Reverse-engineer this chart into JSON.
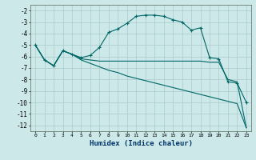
{
  "xlabel": "Humidex (Indice chaleur)",
  "background_color": "#cce8e8",
  "grid_color": "#aacccc",
  "line_color": "#006666",
  "xlim": [
    -0.5,
    23.5
  ],
  "ylim": [
    -12.5,
    -1.5
  ],
  "yticks": [
    -12,
    -11,
    -10,
    -9,
    -8,
    -7,
    -6,
    -5,
    -4,
    -3,
    -2
  ],
  "xticks": [
    0,
    1,
    2,
    3,
    4,
    5,
    6,
    7,
    8,
    9,
    10,
    11,
    12,
    13,
    14,
    15,
    16,
    17,
    18,
    19,
    20,
    21,
    22,
    23
  ],
  "series1_x": [
    0,
    1,
    2,
    3,
    4,
    5,
    6,
    7,
    8,
    9,
    10,
    11,
    12,
    13,
    14,
    15,
    16,
    17,
    18,
    19,
    20,
    21,
    22,
    23
  ],
  "series1_y": [
    -5.0,
    -6.3,
    -6.8,
    -5.5,
    -5.8,
    -6.1,
    -5.9,
    -5.2,
    -3.9,
    -3.6,
    -3.1,
    -2.5,
    -2.4,
    -2.4,
    -2.5,
    -2.8,
    -3.0,
    -3.7,
    -3.5,
    -6.1,
    -6.2,
    -8.2,
    -8.3,
    -10.0
  ],
  "series2_x": [
    0,
    1,
    2,
    3,
    4,
    5,
    6,
    7,
    8,
    9,
    10,
    11,
    12,
    13,
    14,
    15,
    16,
    17,
    18,
    19,
    20,
    21,
    22,
    23
  ],
  "series2_y": [
    -5.0,
    -6.3,
    -6.8,
    -5.5,
    -5.8,
    -6.2,
    -6.3,
    -6.4,
    -6.4,
    -6.4,
    -6.4,
    -6.4,
    -6.4,
    -6.4,
    -6.4,
    -6.4,
    -6.4,
    -6.4,
    -6.4,
    -6.5,
    -6.5,
    -8.0,
    -8.2,
    -12.2
  ],
  "series3_x": [
    0,
    1,
    2,
    3,
    4,
    5,
    6,
    7,
    8,
    9,
    10,
    11,
    12,
    13,
    14,
    15,
    16,
    17,
    18,
    19,
    20,
    21,
    22,
    23
  ],
  "series3_y": [
    -5.0,
    -6.3,
    -6.8,
    -5.5,
    -5.8,
    -6.3,
    -6.6,
    -6.9,
    -7.2,
    -7.4,
    -7.7,
    -7.9,
    -8.1,
    -8.3,
    -8.5,
    -8.7,
    -8.9,
    -9.1,
    -9.3,
    -9.5,
    -9.7,
    -9.9,
    -10.1,
    -12.2
  ]
}
